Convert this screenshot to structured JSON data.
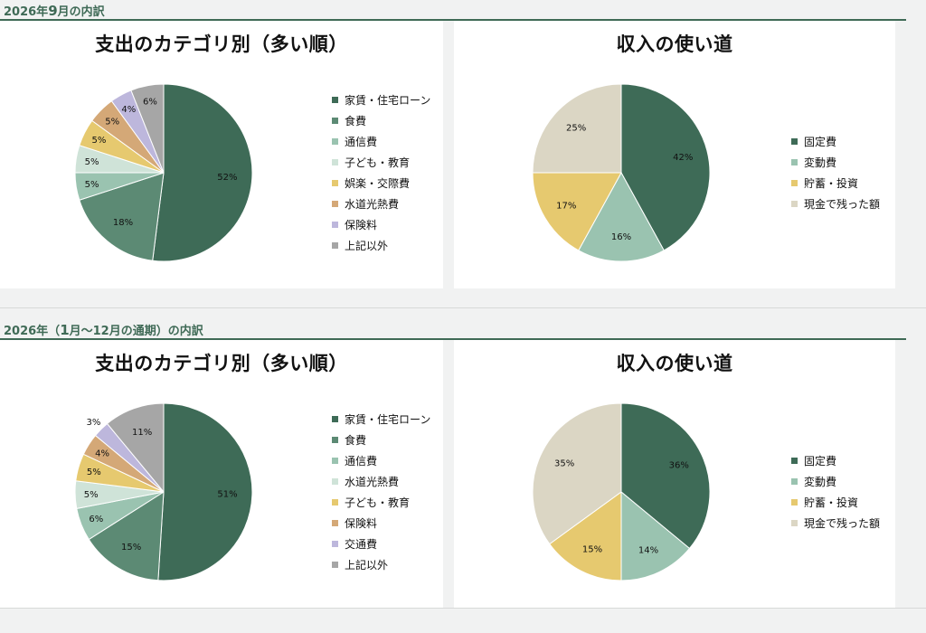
{
  "sections": [
    {
      "title_prefix": "2026年",
      "title_mid": "9",
      "title_suffix": "月の内訳",
      "charts": [
        {
          "title": "支出のカテゴリ別（多い順）",
          "type": "pie",
          "slices": [
            {
              "label": "家賃・住宅ローン",
              "value": 52,
              "display": "52%",
              "color": "#3e6b57"
            },
            {
              "label": "食費",
              "value": 18,
              "display": "18%",
              "color": "#5c8a74"
            },
            {
              "label": "通信費",
              "value": 5,
              "display": "5%",
              "color": "#9ac3b0"
            },
            {
              "label": "子ども・教育",
              "value": 5,
              "display": "5%",
              "color": "#cfe3d8"
            },
            {
              "label": "娯楽・交際費",
              "value": 5,
              "display": "5%",
              "color": "#e6c96f"
            },
            {
              "label": "水道光熱費",
              "value": 5,
              "display": "5%",
              "color": "#d4a877"
            },
            {
              "label": "保険料",
              "value": 4,
              "display": "4%",
              "color": "#bdb7dc"
            },
            {
              "label": "上記以外",
              "value": 6,
              "display": "6%",
              "color": "#a6a6a6"
            }
          ]
        },
        {
          "title": "収入の使い道",
          "type": "pie",
          "slices": [
            {
              "label": "固定費",
              "value": 42,
              "display": "42%",
              "color": "#3e6b57"
            },
            {
              "label": "変動費",
              "value": 16,
              "display": "16%",
              "color": "#9ac3b0"
            },
            {
              "label": "貯蓄・投資",
              "value": 17,
              "display": "17%",
              "color": "#e6c96f"
            },
            {
              "label": "現金で残った額",
              "value": 25,
              "display": "25%",
              "color": "#dbd6c4"
            }
          ]
        }
      ]
    },
    {
      "title_prefix": "2026年（",
      "title_mid": "1",
      "title_suffix": "月～12月の通期）の内訳",
      "charts": [
        {
          "title": "支出のカテゴリ別（多い順）",
          "type": "pie",
          "slices": [
            {
              "label": "家賃・住宅ローン",
              "value": 51,
              "display": "51%",
              "color": "#3e6b57"
            },
            {
              "label": "食費",
              "value": 15,
              "display": "15%",
              "color": "#5c8a74"
            },
            {
              "label": "通信費",
              "value": 6,
              "display": "6%",
              "color": "#9ac3b0"
            },
            {
              "label": "水道光熱費",
              "value": 5,
              "display": "5%",
              "color": "#cfe3d8"
            },
            {
              "label": "子ども・教育",
              "value": 5,
              "display": "5%",
              "color": "#e6c96f"
            },
            {
              "label": "保険料",
              "value": 4,
              "display": "4%",
              "color": "#d4a877"
            },
            {
              "label": "交通費",
              "value": 3,
              "display": "3%",
              "color": "#bdb7dc"
            },
            {
              "label": "上記以外",
              "value": 11,
              "display": "11%",
              "color": "#a6a6a6"
            }
          ]
        },
        {
          "title": "収入の使い道",
          "type": "pie",
          "slices": [
            {
              "label": "固定費",
              "value": 36,
              "display": "36%",
              "color": "#3e6b57"
            },
            {
              "label": "変動費",
              "value": 14,
              "display": "14%",
              "color": "#9ac3b0"
            },
            {
              "label": "貯蓄・投資",
              "value": 15,
              "display": "15%",
              "color": "#e6c96f"
            },
            {
              "label": "現金で残った額",
              "value": 35,
              "display": "35%",
              "color": "#dbd6c4"
            }
          ]
        }
      ]
    }
  ],
  "chart_data": [
    {
      "type": "pie",
      "title": "支出のカテゴリ別（多い順）",
      "categories": [
        "家賃・住宅ローン",
        "食費",
        "通信費",
        "子ども・教育",
        "娯楽・交際費",
        "水道光熱費",
        "保険料",
        "上記以外"
      ],
      "values": [
        52,
        18,
        5,
        5,
        5,
        5,
        4,
        6
      ]
    },
    {
      "type": "pie",
      "title": "収入の使い道",
      "categories": [
        "固定費",
        "変動費",
        "貯蓄・投資",
        "現金で残った額"
      ],
      "values": [
        42,
        16,
        17,
        25
      ]
    },
    {
      "type": "pie",
      "title": "支出のカテゴリ別（多い順）",
      "categories": [
        "家賃・住宅ローン",
        "食費",
        "通信費",
        "水道光熱費",
        "子ども・教育",
        "保険料",
        "交通費",
        "上記以外"
      ],
      "values": [
        51,
        15,
        6,
        5,
        5,
        4,
        3,
        11
      ]
    },
    {
      "type": "pie",
      "title": "収入の使い道",
      "categories": [
        "固定費",
        "変動費",
        "貯蓄・投資",
        "現金で残った額"
      ],
      "values": [
        36,
        14,
        15,
        35
      ]
    }
  ]
}
